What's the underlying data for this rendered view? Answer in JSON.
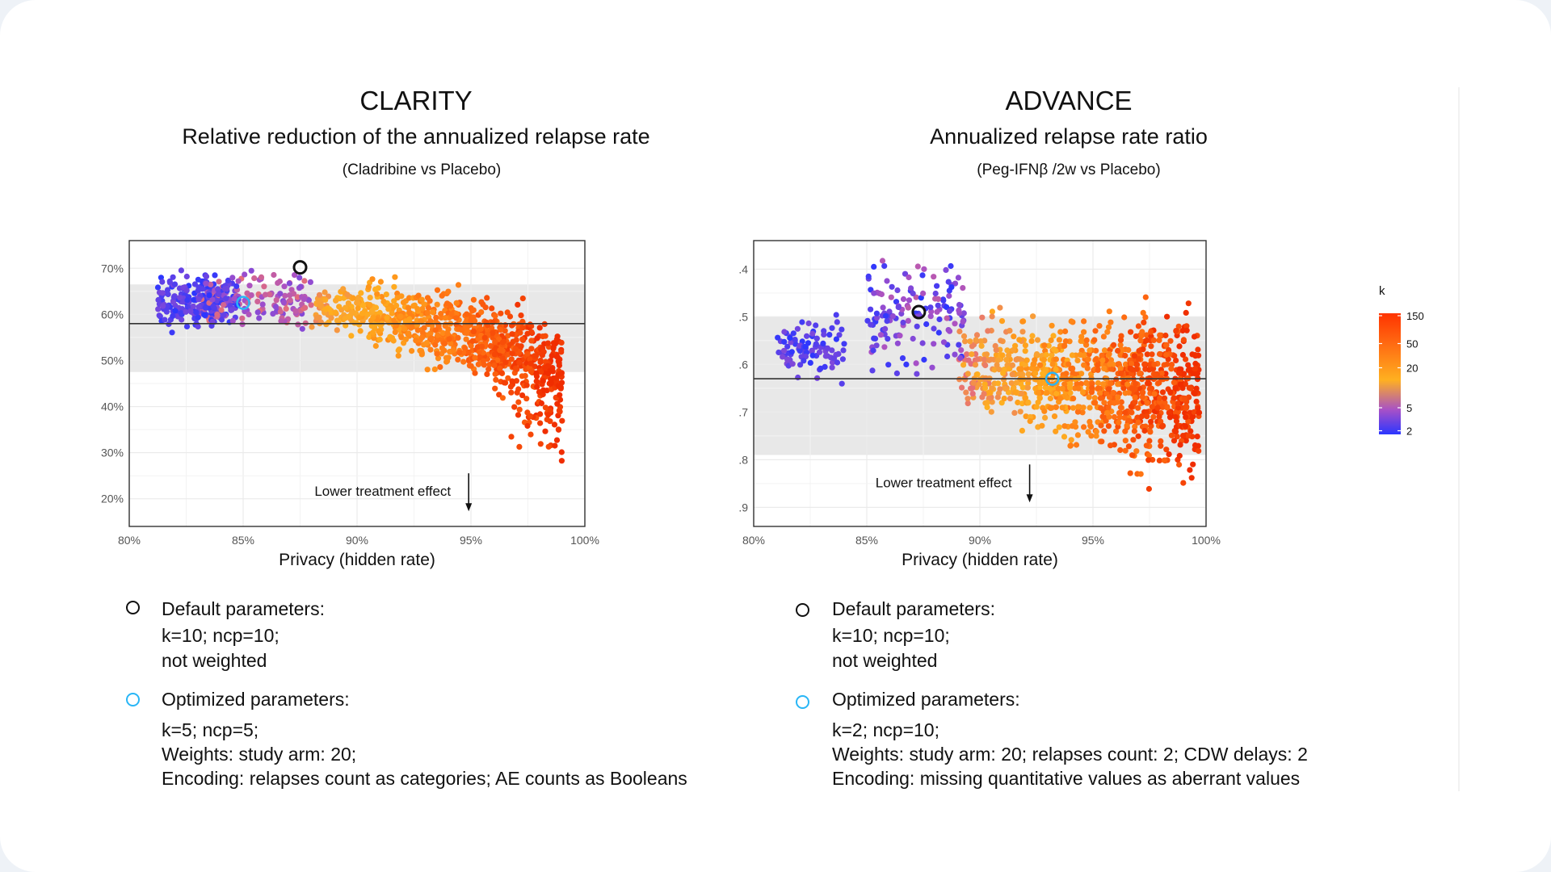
{
  "chart_data": [
    {
      "type": "scatter",
      "title": "CLARITY",
      "subtitle": "Relative reduction of the annualized relapse rate",
      "subtitle2": "(Cladribine vs Placebo)",
      "xlabel": "Privacy (hidden rate)",
      "ylabel": "",
      "xlim": [
        80,
        100
      ],
      "ylim": [
        14,
        76
      ],
      "xticks": [
        80,
        85,
        90,
        95,
        100
      ],
      "xtick_labels": [
        "80%",
        "85%",
        "90%",
        "95%",
        "100%"
      ],
      "yticks": [
        20,
        30,
        40,
        50,
        60,
        70
      ],
      "ytick_labels": [
        "20%",
        "30%",
        "40%",
        "50%",
        "60%",
        "70%"
      ],
      "reference_line": 58,
      "band": [
        47.5,
        66.5
      ],
      "annotation": "Lower treatment effect",
      "annotation_x": 94.9,
      "annotation_y": 25,
      "default_point": {
        "x": 87.5,
        "y": 70.2
      },
      "optimized_point": {
        "x": 85.0,
        "y": 62.5
      },
      "point_count": 1300
    },
    {
      "type": "scatter",
      "title": "ADVANCE",
      "subtitle": "Annualized relapse rate ratio",
      "subtitle2": "(Peg-IFNβ /2w vs Placebo)",
      "xlabel": "Privacy (hidden rate)",
      "ylabel": "",
      "xlim": [
        80,
        100
      ],
      "ylim": [
        0.34,
        0.94
      ],
      "y_reversed": true,
      "xticks": [
        80,
        85,
        90,
        95,
        100
      ],
      "xtick_labels": [
        "80%",
        "85%",
        "90%",
        "95%",
        "100%"
      ],
      "yticks": [
        0.4,
        0.5,
        0.6,
        0.7,
        0.8,
        0.9
      ],
      "ytick_labels": [
        "0.4",
        "0.5",
        "0.6",
        "0.7",
        "0.8",
        "0.9"
      ],
      "reference_line": 0.63,
      "band": [
        0.5,
        0.79
      ],
      "annotation": "Lower treatment effect",
      "annotation_x": 92.2,
      "annotation_y": 0.815,
      "default_point": {
        "x": 87.3,
        "y": 0.49
      },
      "optimized_point": {
        "x": 93.2,
        "y": 0.63
      },
      "point_count": 1300
    }
  ],
  "colorbar": {
    "title": "k",
    "ticks": [
      150,
      50,
      20,
      5,
      2
    ],
    "tick_labels": [
      "150",
      "50",
      "20",
      "5",
      "2"
    ],
    "colors": [
      "#ff3300",
      "#ff6a12",
      "#ffb020",
      "#a650c8",
      "#2b36ff"
    ]
  },
  "legends": [
    {
      "default_title": "Default parameters:",
      "default_lines": [
        "k=10; ncp=10;",
        "not weighted"
      ],
      "optimized_title": "Optimized parameters:",
      "optimized_lines": [
        "k=5; ncp=5;",
        "Weights: study arm: 20;",
        "Encoding: relapses count as categories; AE counts as Booleans"
      ]
    },
    {
      "default_title": "Default parameters:",
      "default_lines": [
        "k=10; ncp=10;",
        "not weighted"
      ],
      "optimized_title": "Optimized parameters:",
      "optimized_lines": [
        "k=2; ncp=10;",
        "Weights: study arm: 20; relapses count: 2; CDW delays: 2",
        "Encoding: missing quantitative values as aberrant values"
      ]
    }
  ],
  "colors": {
    "default_marker": "#111111",
    "optimized_marker": "#29b6f6",
    "band": "#e8e8e8",
    "grid": "#ebebeb",
    "ref_line": "#333333"
  }
}
